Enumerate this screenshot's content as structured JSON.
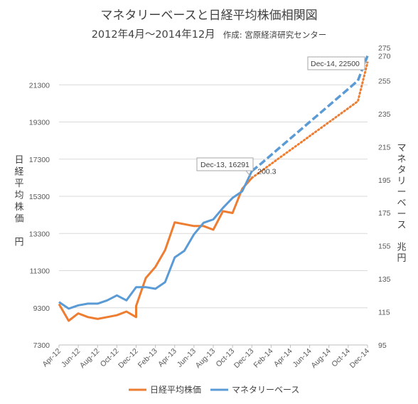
{
  "chart_data": {
    "type": "line",
    "title": "マネタリーベースと日経平均株価相関図",
    "subtitle_main": "2012年4月〜2014年12月",
    "subtitle_credit": "作成: 宮原経済研究センター",
    "ylabel_left": [
      "日",
      "経",
      "平",
      "均",
      "株",
      "価",
      "",
      "円"
    ],
    "ylabel_right": [
      "マ",
      "ネ",
      "タ",
      "リ",
      "ー",
      "ベ",
      "ー",
      "ス",
      "",
      "兆",
      "円"
    ],
    "ylim_left": [
      7300,
      23300
    ],
    "ylim_right": [
      95,
      275
    ],
    "yticks_left": [
      "7300",
      "9300",
      "11300",
      "13300",
      "15300",
      "17300",
      "19300",
      "21300"
    ],
    "yticks_right": [
      "95",
      "115",
      "135",
      "155",
      "175",
      "195",
      "215",
      "235",
      "255",
      "270",
      "275"
    ],
    "xticks": [
      "Apr-12",
      "Jun-12",
      "Aug-12",
      "Oct-12",
      "Dec-12",
      "Feb-13",
      "Apr-13",
      "Jun-13",
      "Aug-13",
      "Oct-13",
      "Dec-13",
      "Feb-14",
      "Apr-14",
      "Jun-14",
      "Aug-14",
      "Oct-14",
      "Dec-14"
    ],
    "x": [
      "2012-04",
      "2012-05",
      "2012-06",
      "2012-07",
      "2012-08",
      "2012-09",
      "2012-10",
      "2012-11",
      "2012-12",
      "2013-01",
      "2013-02",
      "2013-03",
      "2013-04",
      "2013-05",
      "2013-06",
      "2013-07",
      "2013-08",
      "2013-09",
      "2013-10",
      "2013-11",
      "2013-12",
      "2014-01",
      "2014-02",
      "2014-03",
      "2014-04",
      "2014-05",
      "2014-06",
      "2014-07",
      "2014-08",
      "2014-09",
      "2014-10",
      "2014-11",
      "2014-12"
    ],
    "series": [
      {
        "name": "日経平均株価",
        "axis": "left",
        "color": "#ED7D31",
        "dec12_detail": [
          8800,
          9400
        ],
        "values": [
          9500,
          8600,
          9000,
          8800,
          8700,
          8800,
          8900,
          9100,
          9400,
          10900,
          11500,
          12400,
          13900,
          13800,
          13700,
          13700,
          13500,
          14500,
          14400,
          15700,
          16291,
          null,
          null,
          null,
          null,
          null,
          null,
          null,
          null,
          null,
          null,
          null,
          null
        ],
        "projection": [
          null,
          null,
          null,
          null,
          null,
          null,
          null,
          null,
          null,
          null,
          null,
          null,
          null,
          null,
          null,
          null,
          null,
          null,
          null,
          null,
          16291,
          16666,
          17040,
          17415,
          17790,
          18165,
          18540,
          18915,
          19290,
          19665,
          20040,
          20415,
          22500
        ]
      },
      {
        "name": "マネタリーベース",
        "axis": "right",
        "color": "#5B9BD5",
        "values": [
          121,
          117,
          119,
          120,
          120,
          122,
          125,
          122,
          130,
          130,
          129,
          133,
          148,
          152,
          162,
          169,
          171,
          178,
          184,
          188,
          200.3,
          null,
          null,
          null,
          null,
          null,
          null,
          null,
          null,
          null,
          null,
          null,
          null
        ],
        "projection": [
          null,
          null,
          null,
          null,
          null,
          null,
          null,
          null,
          null,
          null,
          null,
          null,
          null,
          null,
          null,
          null,
          null,
          null,
          null,
          null,
          200.3,
          205,
          210,
          215,
          220,
          225,
          230,
          235,
          240,
          245,
          250,
          255,
          270
        ]
      }
    ],
    "annotations": [
      {
        "text": "Dec-13, 16291",
        "series": 0,
        "index": 20
      },
      {
        "text": "200.3",
        "series": 1,
        "index": 20
      },
      {
        "text": "Dec-14, 22500",
        "series": 0,
        "index": 32
      }
    ],
    "grid": true,
    "legend_position": "bottom"
  }
}
